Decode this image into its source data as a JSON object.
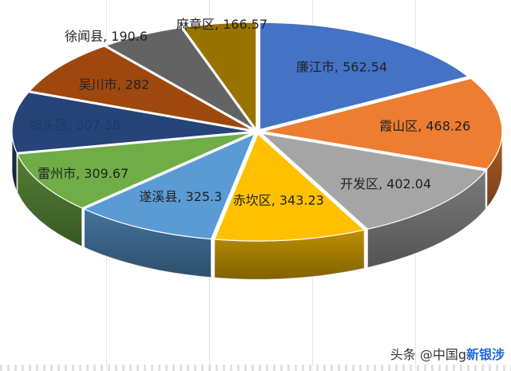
{
  "chart_data": {
    "type": "pie",
    "style": "3d-exploded",
    "legend": "none",
    "data_labels": "category, value",
    "slices": [
      {
        "label": "廉江市",
        "value": 562.54,
        "color": "#4472c4"
      },
      {
        "label": "霞山区",
        "value": 468.26,
        "color": "#ed7d31"
      },
      {
        "label": "开发区",
        "value": 402.04,
        "color": "#a5a5a5"
      },
      {
        "label": "赤坎区",
        "value": 343.23,
        "color": "#ffc000"
      },
      {
        "label": "遂溪县",
        "value": 325.3,
        "color": "#5b9bd5"
      },
      {
        "label": "雷州市",
        "value": 309.67,
        "color": "#70ad47"
      },
      {
        "label": "坡头区",
        "value": 307.38,
        "color": "#264478"
      },
      {
        "label": "吴川市",
        "value": 282,
        "color": "#9e480e"
      },
      {
        "label": "徐闻县",
        "value": 190.6,
        "color": "#636363"
      },
      {
        "label": "麻章区",
        "value": 166.57,
        "color": "#997300"
      }
    ],
    "separator": ", "
  },
  "watermark": {
    "prefix": "头条 @中国g",
    "brand": "新银涉"
  }
}
